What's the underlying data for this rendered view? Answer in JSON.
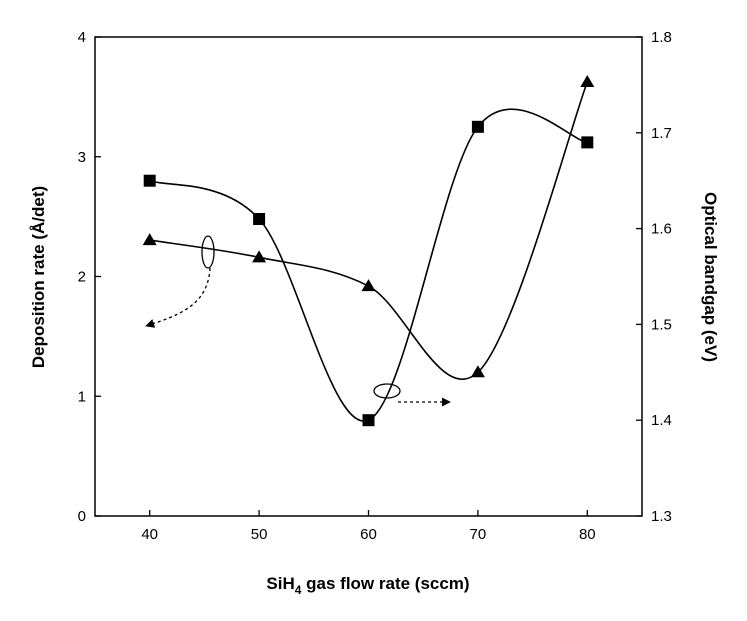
{
  "chart_data": {
    "type": "line",
    "xlabel": "SiH",
    "xlabel_sub": "4",
    "xlabel_rest": " gas flow rate (sccm)",
    "ylabel_left": "Deposition rate (Å/det)",
    "ylabel_right": "Optical bandgap (eV)",
    "xlim": [
      35,
      85
    ],
    "ylim_left": [
      0,
      4
    ],
    "ylim_right": [
      1.3,
      1.8
    ],
    "x_ticks": [
      40,
      50,
      60,
      70,
      80
    ],
    "y_left_ticks": [
      0,
      1,
      2,
      3,
      4
    ],
    "y_right_ticks": [
      "1.3",
      "1.4",
      "1.5",
      "1.6",
      "1.7",
      "1.8"
    ],
    "grid": false,
    "series": [
      {
        "marker": "square",
        "axis": "left",
        "x": [
          40,
          50,
          60,
          70,
          80
        ],
        "values": [
          2.8,
          2.48,
          0.8,
          3.25,
          3.12
        ]
      },
      {
        "marker": "triangle",
        "axis": "right",
        "x": [
          40,
          50,
          60,
          70,
          80
        ],
        "values": [
          1.588,
          1.57,
          1.54,
          1.45,
          1.753
        ]
      }
    ]
  }
}
